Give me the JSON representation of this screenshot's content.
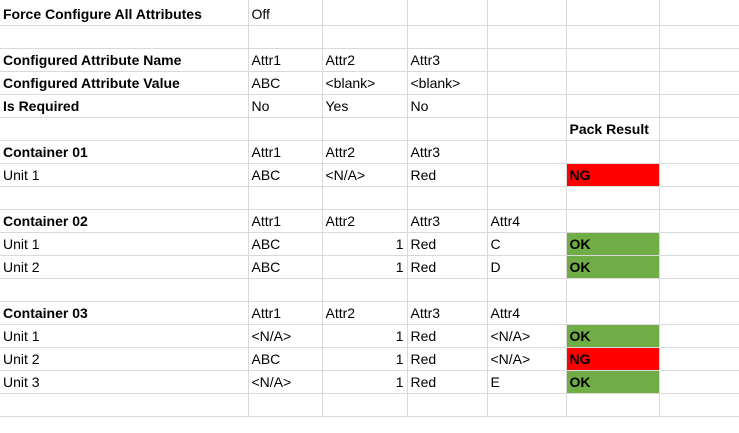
{
  "settings": {
    "label": "Force Configure All Attributes",
    "value": "Off"
  },
  "configured": {
    "name_label": "Configured Attribute Name",
    "names": [
      "Attr1",
      "Attr2",
      "Attr3"
    ],
    "value_label": "Configured Attribute Value",
    "values": [
      "ABC",
      "<blank>",
      "<blank>"
    ],
    "required_label": "Is Required",
    "required": [
      "No",
      "Yes",
      "No"
    ]
  },
  "pack_result_header": "Pack Result",
  "containers": [
    {
      "name": "Container 01",
      "headers": [
        "Attr1",
        "Attr2",
        "Attr3",
        ""
      ],
      "units": [
        {
          "name": "Unit 1",
          "attr1": "ABC",
          "attr2": "<N/A>",
          "attr3": "Red",
          "attr4": "",
          "result": "NG"
        }
      ]
    },
    {
      "name": "Container 02",
      "headers": [
        "Attr1",
        "Attr2",
        "Attr3",
        "Attr4"
      ],
      "units": [
        {
          "name": "Unit 1",
          "attr1": "ABC",
          "attr2": "1",
          "attr3": "Red",
          "attr4": "C",
          "result": "OK"
        },
        {
          "name": "Unit 2",
          "attr1": "ABC",
          "attr2": "1",
          "attr3": "Red",
          "attr4": "D",
          "result": "OK"
        }
      ]
    },
    {
      "name": "Container 03",
      "headers": [
        "Attr1",
        "Attr2",
        "Attr3",
        "Attr4"
      ],
      "units": [
        {
          "name": "Unit 1",
          "attr1": "<N/A>",
          "attr2": "1",
          "attr3": "Red",
          "attr4": "<N/A>",
          "result": "OK"
        },
        {
          "name": "Unit 2",
          "attr1": "ABC",
          "attr2": "1",
          "attr3": "Red",
          "attr4": "<N/A>",
          "result": "NG"
        },
        {
          "name": "Unit 3",
          "attr1": "<N/A>",
          "attr2": "1",
          "attr3": "Red",
          "attr4": "E",
          "result": "OK"
        }
      ]
    }
  ],
  "colors": {
    "ok": "#70ad47",
    "ng": "#ff0000",
    "gridline": "#d9d9d9"
  }
}
